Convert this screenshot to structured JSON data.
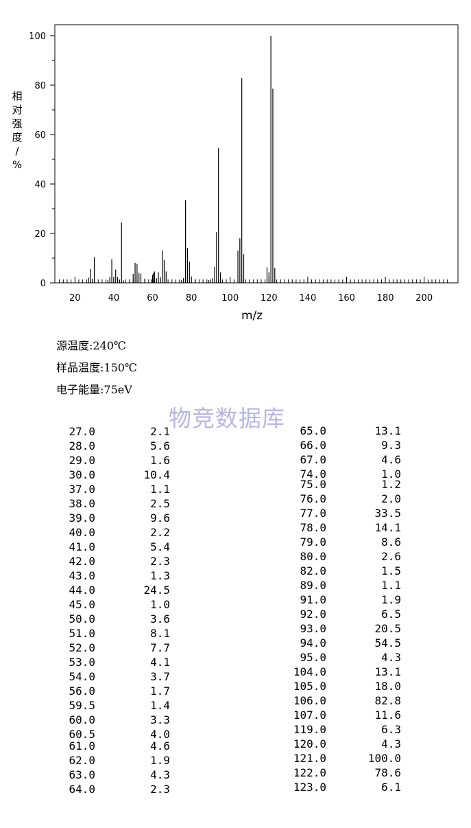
{
  "chart_data": {
    "type": "bar",
    "ylabel": "相对强度/%",
    "xlabel": "m/z",
    "xlim": [
      10,
      214
    ],
    "ylim": [
      0,
      104
    ],
    "xticks": [
      20,
      40,
      60,
      80,
      100,
      120,
      140,
      160,
      180,
      200
    ],
    "yticks": [
      0,
      20,
      40,
      60,
      80,
      100
    ],
    "grid": false,
    "peaks": [
      {
        "mz": "27.0",
        "abundance": "2.1"
      },
      {
        "mz": "28.0",
        "abundance": "5.6"
      },
      {
        "mz": "29.0",
        "abundance": "1.6"
      },
      {
        "mz": "30.0",
        "abundance": "10.4"
      },
      {
        "mz": "37.0",
        "abundance": "1.1"
      },
      {
        "mz": "38.0",
        "abundance": "2.5"
      },
      {
        "mz": "39.0",
        "abundance": "9.6"
      },
      {
        "mz": "40.0",
        "abundance": "2.2"
      },
      {
        "mz": "41.0",
        "abundance": "5.4"
      },
      {
        "mz": "42.0",
        "abundance": "2.3"
      },
      {
        "mz": "43.0",
        "abundance": "1.3"
      },
      {
        "mz": "44.0",
        "abundance": "24.5"
      },
      {
        "mz": "45.0",
        "abundance": "1.0"
      },
      {
        "mz": "50.0",
        "abundance": "3.6"
      },
      {
        "mz": "51.0",
        "abundance": "8.1"
      },
      {
        "mz": "52.0",
        "abundance": "7.7"
      },
      {
        "mz": "53.0",
        "abundance": "4.1"
      },
      {
        "mz": "54.0",
        "abundance": "3.7"
      },
      {
        "mz": "56.0",
        "abundance": "1.7"
      },
      {
        "mz": "59.5",
        "abundance": "1.4"
      },
      {
        "mz": "60.0",
        "abundance": "3.3"
      },
      {
        "mz": "60.5",
        "abundance": "4.0"
      },
      {
        "mz": "61.0",
        "abundance": "4.6"
      },
      {
        "mz": "62.0",
        "abundance": "1.9"
      },
      {
        "mz": "63.0",
        "abundance": "4.3"
      },
      {
        "mz": "64.0",
        "abundance": "2.3"
      },
      {
        "mz": "65.0",
        "abundance": "13.1"
      },
      {
        "mz": "66.0",
        "abundance": "9.3"
      },
      {
        "mz": "67.0",
        "abundance": "4.6"
      },
      {
        "mz": "74.0",
        "abundance": "1.0"
      },
      {
        "mz": "75.0",
        "abundance": "1.2"
      },
      {
        "mz": "76.0",
        "abundance": "2.0"
      },
      {
        "mz": "77.0",
        "abundance": "33.5"
      },
      {
        "mz": "78.0",
        "abundance": "14.1"
      },
      {
        "mz": "79.0",
        "abundance": "8.6"
      },
      {
        "mz": "80.0",
        "abundance": "2.6"
      },
      {
        "mz": "82.0",
        "abundance": "1.5"
      },
      {
        "mz": "89.0",
        "abundance": "1.1"
      },
      {
        "mz": "91.0",
        "abundance": "1.9"
      },
      {
        "mz": "92.0",
        "abundance": "6.5"
      },
      {
        "mz": "93.0",
        "abundance": "20.5"
      },
      {
        "mz": "94.0",
        "abundance": "54.5"
      },
      {
        "mz": "95.0",
        "abundance": "4.3"
      },
      {
        "mz": "104.0",
        "abundance": "13.1"
      },
      {
        "mz": "105.0",
        "abundance": "18.0"
      },
      {
        "mz": "106.0",
        "abundance": "82.8"
      },
      {
        "mz": "107.0",
        "abundance": "11.6"
      },
      {
        "mz": "119.0",
        "abundance": "6.3"
      },
      {
        "mz": "120.0",
        "abundance": "4.3"
      },
      {
        "mz": "121.0",
        "abundance": "100.0"
      },
      {
        "mz": "122.0",
        "abundance": "78.6"
      },
      {
        "mz": "123.0",
        "abundance": "6.1"
      }
    ]
  },
  "params": [
    "源温度:240℃",
    "样品温度:150℃",
    "电子能量:75eV"
  ],
  "watermark": "物竞数据库",
  "colors": {
    "watermark": "#b6b6e6",
    "bars": "#000000"
  }
}
